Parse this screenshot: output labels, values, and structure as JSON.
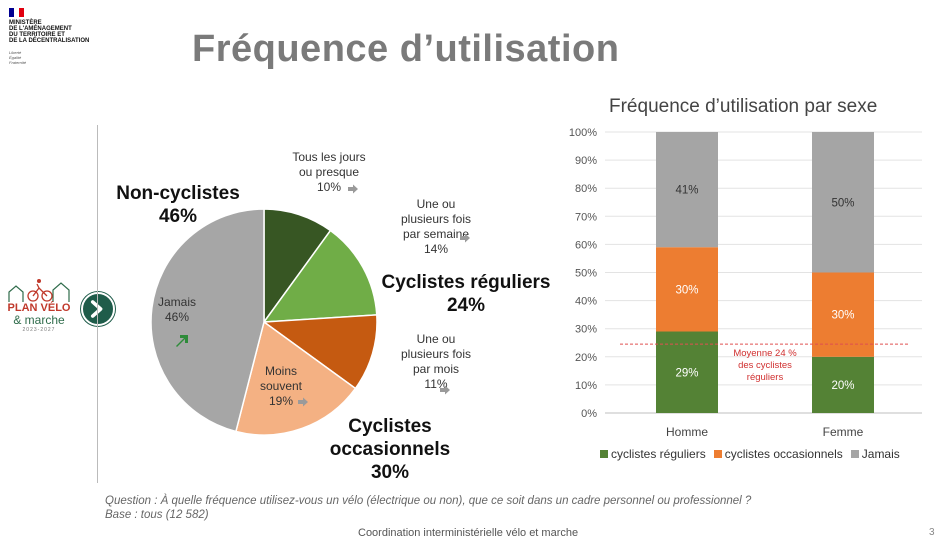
{
  "logo": {
    "text": "MINISTÈRE\nDE L'AMÉNAGEMENT\nDU TERRITOIRE ET\nDE LA DÉCENTRALISATION",
    "motto": "Liberté\nÉgalité\nFraternité",
    "flag_colors": [
      "#000091",
      "#ffffff",
      "#e1000f"
    ]
  },
  "page_title": "Fréquence d’utilisation",
  "plan_logo": {
    "title": "PLAN VÉLO",
    "subtitle": "& marche",
    "years": "2023-2027"
  },
  "colors": {
    "daily": "#375623",
    "weekly": "#70ad47",
    "monthly": "#c55a11",
    "rarely": "#f4b183",
    "never": "#a6a6a6",
    "regular": "#548235",
    "occasional": "#ed7d31",
    "jamais": "#a5a5a5",
    "average_line": "#e05050"
  },
  "chart_data": [
    {
      "type": "pie",
      "slices": [
        {
          "label": "Tous les jours ou presque",
          "value": 10,
          "value_label": "10%"
        },
        {
          "label": "Une ou plusieurs fois par semaine",
          "value": 14,
          "value_label": "14%"
        },
        {
          "label": "Une ou plusieurs fois par mois",
          "value": 11,
          "value_label": "11%"
        },
        {
          "label": "Moins souvent",
          "value": 19,
          "value_label": "19%"
        },
        {
          "label": "Jamais",
          "value": 46,
          "value_label": "46%"
        }
      ],
      "slice_label_lines": [
        [
          "Tous les jours",
          "ou presque"
        ],
        [
          "Une ou",
          "plusieurs fois",
          "par semaine"
        ],
        [
          "Une ou",
          "plusieurs fois",
          "par mois"
        ],
        [
          "Moins",
          "souvent"
        ],
        [
          "Jamais"
        ]
      ],
      "groups": [
        {
          "lines": [
            "Non-cyclistes",
            "46%"
          ]
        },
        {
          "lines": [
            "Cyclistes réguliers",
            "24%"
          ]
        },
        {
          "lines": [
            "Cyclistes",
            "occasionnels",
            "30%"
          ]
        }
      ]
    },
    {
      "type": "bar",
      "stacked": true,
      "title": "Fréquence d’utilisation par sexe",
      "categories": [
        "Homme",
        "Femme"
      ],
      "series": [
        {
          "name": "cyclistes réguliers",
          "values": [
            29,
            20
          ],
          "labels": [
            "29%",
            "20%"
          ]
        },
        {
          "name": "cyclistes occasionnels",
          "values": [
            30,
            30
          ],
          "labels": [
            "30%",
            "30%"
          ]
        },
        {
          "name": "Jamais",
          "values": [
            41,
            50
          ],
          "labels": [
            "41%",
            "50%"
          ]
        }
      ],
      "ylim": [
        0,
        100
      ],
      "yticks": [
        "0%",
        "10%",
        "20%",
        "30%",
        "40%",
        "50%",
        "60%",
        "70%",
        "80%",
        "90%",
        "100%"
      ],
      "grid": true,
      "legend_position": "bottom",
      "reference_line": {
        "value": 24.5,
        "label_lines": [
          "Moyenne 24 %",
          "des cyclistes",
          "réguliers"
        ]
      }
    }
  ],
  "question_lines": [
    "Question : À quelle fréquence utilisez-vous un vélo (électrique ou non), que ce soit dans un cadre personnel ou professionnel ?",
    "Base : tous (12 582)"
  ],
  "footer": "Coordination interministérielle vélo et marche",
  "page_number": "3"
}
